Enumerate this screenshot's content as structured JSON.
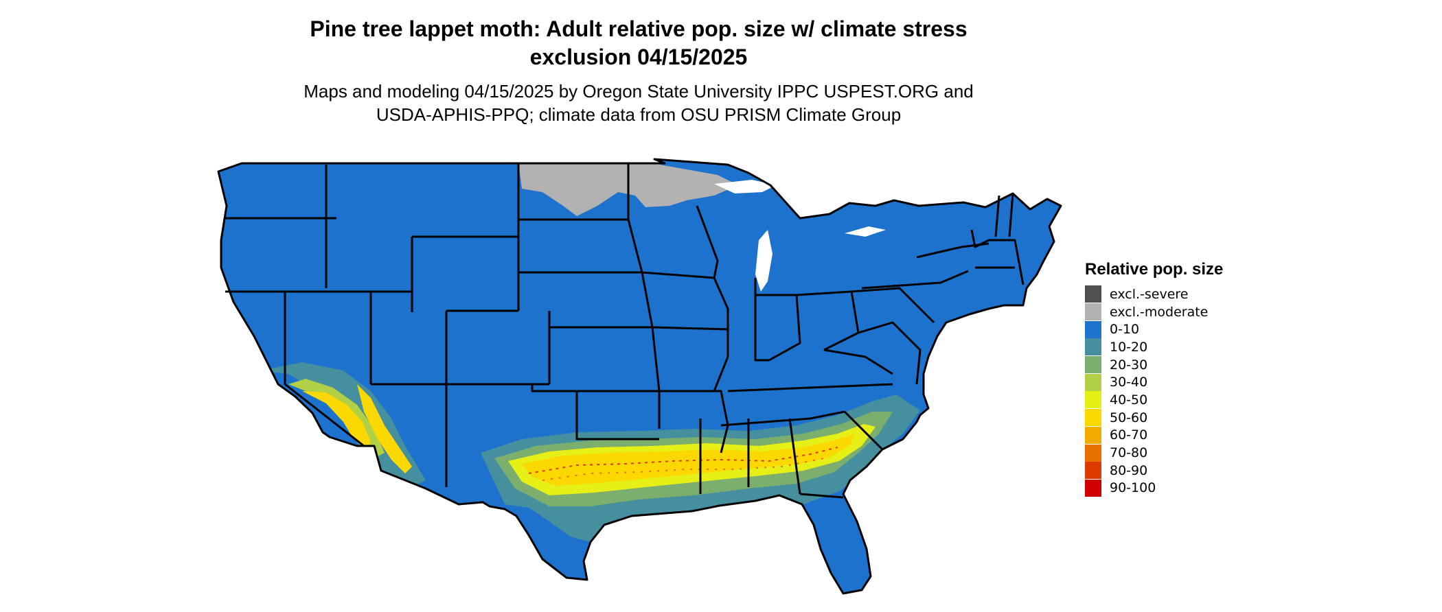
{
  "title": {
    "line1": "Pine tree lappet moth: Adult relative pop. size w/ climate stress",
    "line2": "exclusion 04/15/2025"
  },
  "subtitle": {
    "line1": "Maps and modeling 04/15/2025 by Oregon State University IPPC USPEST.ORG and",
    "line2": "USDA-APHIS-PPQ; climate data from OSU PRISM Climate Group"
  },
  "legend": {
    "title": "Relative pop. size",
    "items": [
      {
        "label": "excl.-severe",
        "color": "#505050"
      },
      {
        "label": "excl.-moderate",
        "color": "#b2b2b2"
      },
      {
        "label": "0-10",
        "color": "#1c72cc"
      },
      {
        "label": "10-20",
        "color": "#458f9f"
      },
      {
        "label": "20-30",
        "color": "#7caf6d"
      },
      {
        "label": "30-40",
        "color": "#b1d045"
      },
      {
        "label": "40-50",
        "color": "#e6ef16"
      },
      {
        "label": "50-60",
        "color": "#fbd800"
      },
      {
        "label": "60-70",
        "color": "#f2ab00"
      },
      {
        "label": "70-80",
        "color": "#e87100"
      },
      {
        "label": "80-90",
        "color": "#dc3b00"
      },
      {
        "label": "90-100",
        "color": "#d00000"
      }
    ]
  },
  "map": {
    "region": "Contiguous United States",
    "base_color": "#1c72cc",
    "border_color": "#000000"
  }
}
